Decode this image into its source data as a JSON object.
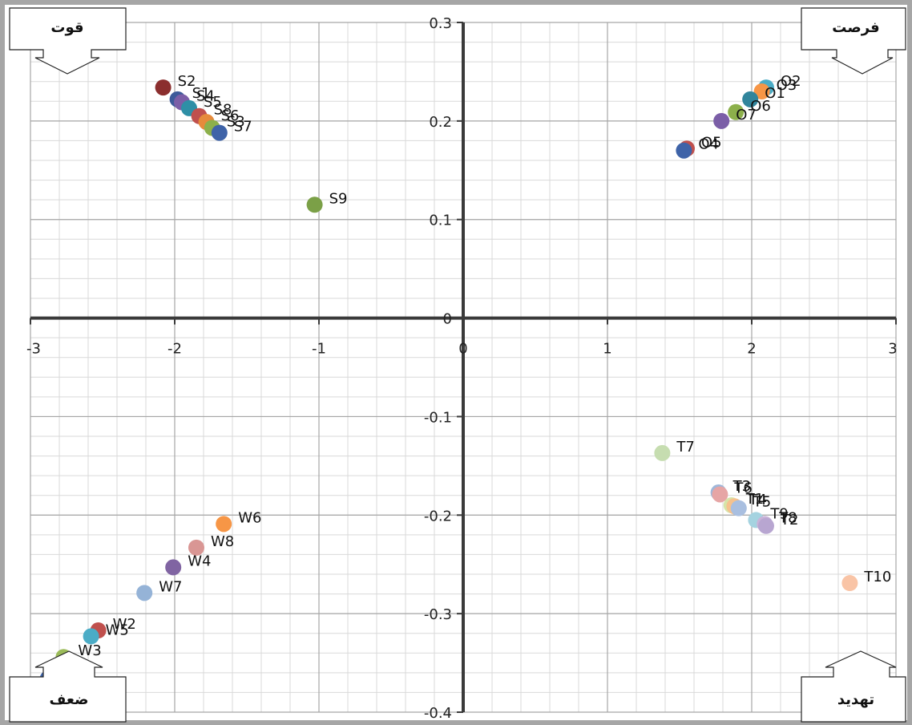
{
  "chart_data": {
    "type": "scatter",
    "title": "",
    "xlabel": "",
    "ylabel": "",
    "xlim": [
      -3,
      3
    ],
    "ylim": [
      -0.4,
      0.3
    ],
    "grid": true,
    "x_ticks": [
      "-3",
      "-2",
      "-1",
      "0",
      "1",
      "2",
      "3"
    ],
    "y_ticks": [
      "0.3",
      "0.2",
      "0.1",
      "0",
      "-0.1",
      "-0.2",
      "-0.3",
      "-0.4"
    ],
    "quadrant_labels": {
      "top_left": "قوت",
      "top_right": "فرصت",
      "bottom_left": "ضعف",
      "bottom_right": "تهدید"
    },
    "points": [
      {
        "label": "S2",
        "x": -2.08,
        "y": 0.234,
        "color": "#8B2E2E"
      },
      {
        "label": "S1",
        "x": -1.98,
        "y": 0.222,
        "color": "#3C5A9A"
      },
      {
        "label": "S4",
        "x": -1.95,
        "y": 0.219,
        "color": "#7B5EA7"
      },
      {
        "label": "S5",
        "x": -1.9,
        "y": 0.213,
        "color": "#2E8FA6"
      },
      {
        "label": "S8",
        "x": -1.83,
        "y": 0.205,
        "color": "#C0504D"
      },
      {
        "label": "S6",
        "x": -1.78,
        "y": 0.199,
        "color": "#E68A3B"
      },
      {
        "label": "S3",
        "x": -1.74,
        "y": 0.193,
        "color": "#8CB04B"
      },
      {
        "label": "S7",
        "x": -1.69,
        "y": 0.188,
        "color": "#3E63A8"
      },
      {
        "label": "S9",
        "x": -1.03,
        "y": 0.115,
        "color": "#7BA047"
      },
      {
        "label": "O2",
        "x": 2.1,
        "y": 0.234,
        "color": "#4BACC6"
      },
      {
        "label": "O3",
        "x": 2.07,
        "y": 0.23,
        "color": "#F79646"
      },
      {
        "label": "O1",
        "x": 1.99,
        "y": 0.222,
        "color": "#31859C"
      },
      {
        "label": "O6",
        "x": 1.89,
        "y": 0.209,
        "color": "#8CB04B"
      },
      {
        "label": "O7",
        "x": 1.79,
        "y": 0.2,
        "color": "#7B5EA7"
      },
      {
        "label": "O5",
        "x": 1.55,
        "y": 0.172,
        "color": "#C0504D"
      },
      {
        "label": "O4",
        "x": 1.53,
        "y": 0.17,
        "color": "#3E63A8"
      },
      {
        "label": "T7",
        "x": 1.38,
        "y": -0.137,
        "color": "#C6DDB0"
      },
      {
        "label": "T3",
        "x": 1.77,
        "y": -0.177,
        "color": "#9FB7D9"
      },
      {
        "label": "T6",
        "x": 1.78,
        "y": -0.179,
        "color": "#E6A5A5"
      },
      {
        "label": "T1",
        "x": 1.86,
        "y": -0.19,
        "color": "#D6E4A8"
      },
      {
        "label": "T4",
        "x": 1.88,
        "y": -0.191,
        "color": "#F5C28E"
      },
      {
        "label": "T5",
        "x": 1.91,
        "y": -0.193,
        "color": "#A9BFE0"
      },
      {
        "label": "T9",
        "x": 2.03,
        "y": -0.205,
        "color": "#A5D3E0"
      },
      {
        "label": "T8",
        "x": 2.09,
        "y": -0.209,
        "color": "#C9B3D8"
      },
      {
        "label": "T2",
        "x": 2.1,
        "y": -0.211,
        "color": "#B8A6D1"
      },
      {
        "label": "T10",
        "x": 2.68,
        "y": -0.269,
        "color": "#F9C4A6"
      },
      {
        "label": "W6",
        "x": -1.66,
        "y": -0.209,
        "color": "#F79646"
      },
      {
        "label": "W8",
        "x": -1.85,
        "y": -0.233,
        "color": "#D99694"
      },
      {
        "label": "W4",
        "x": -2.01,
        "y": -0.253,
        "color": "#8064A2"
      },
      {
        "label": "W7",
        "x": -2.21,
        "y": -0.279,
        "color": "#95B3D7"
      },
      {
        "label": "W2",
        "x": -2.53,
        "y": -0.317,
        "color": "#C0504D"
      },
      {
        "label": "W5",
        "x": -2.58,
        "y": -0.323,
        "color": "#4BACC6"
      },
      {
        "label": "W3",
        "x": -2.77,
        "y": -0.344,
        "color": "#9BBB59"
      },
      {
        "label": "W1",
        "x": -2.88,
        "y": -0.366,
        "color": "#3E63A8"
      }
    ]
  }
}
